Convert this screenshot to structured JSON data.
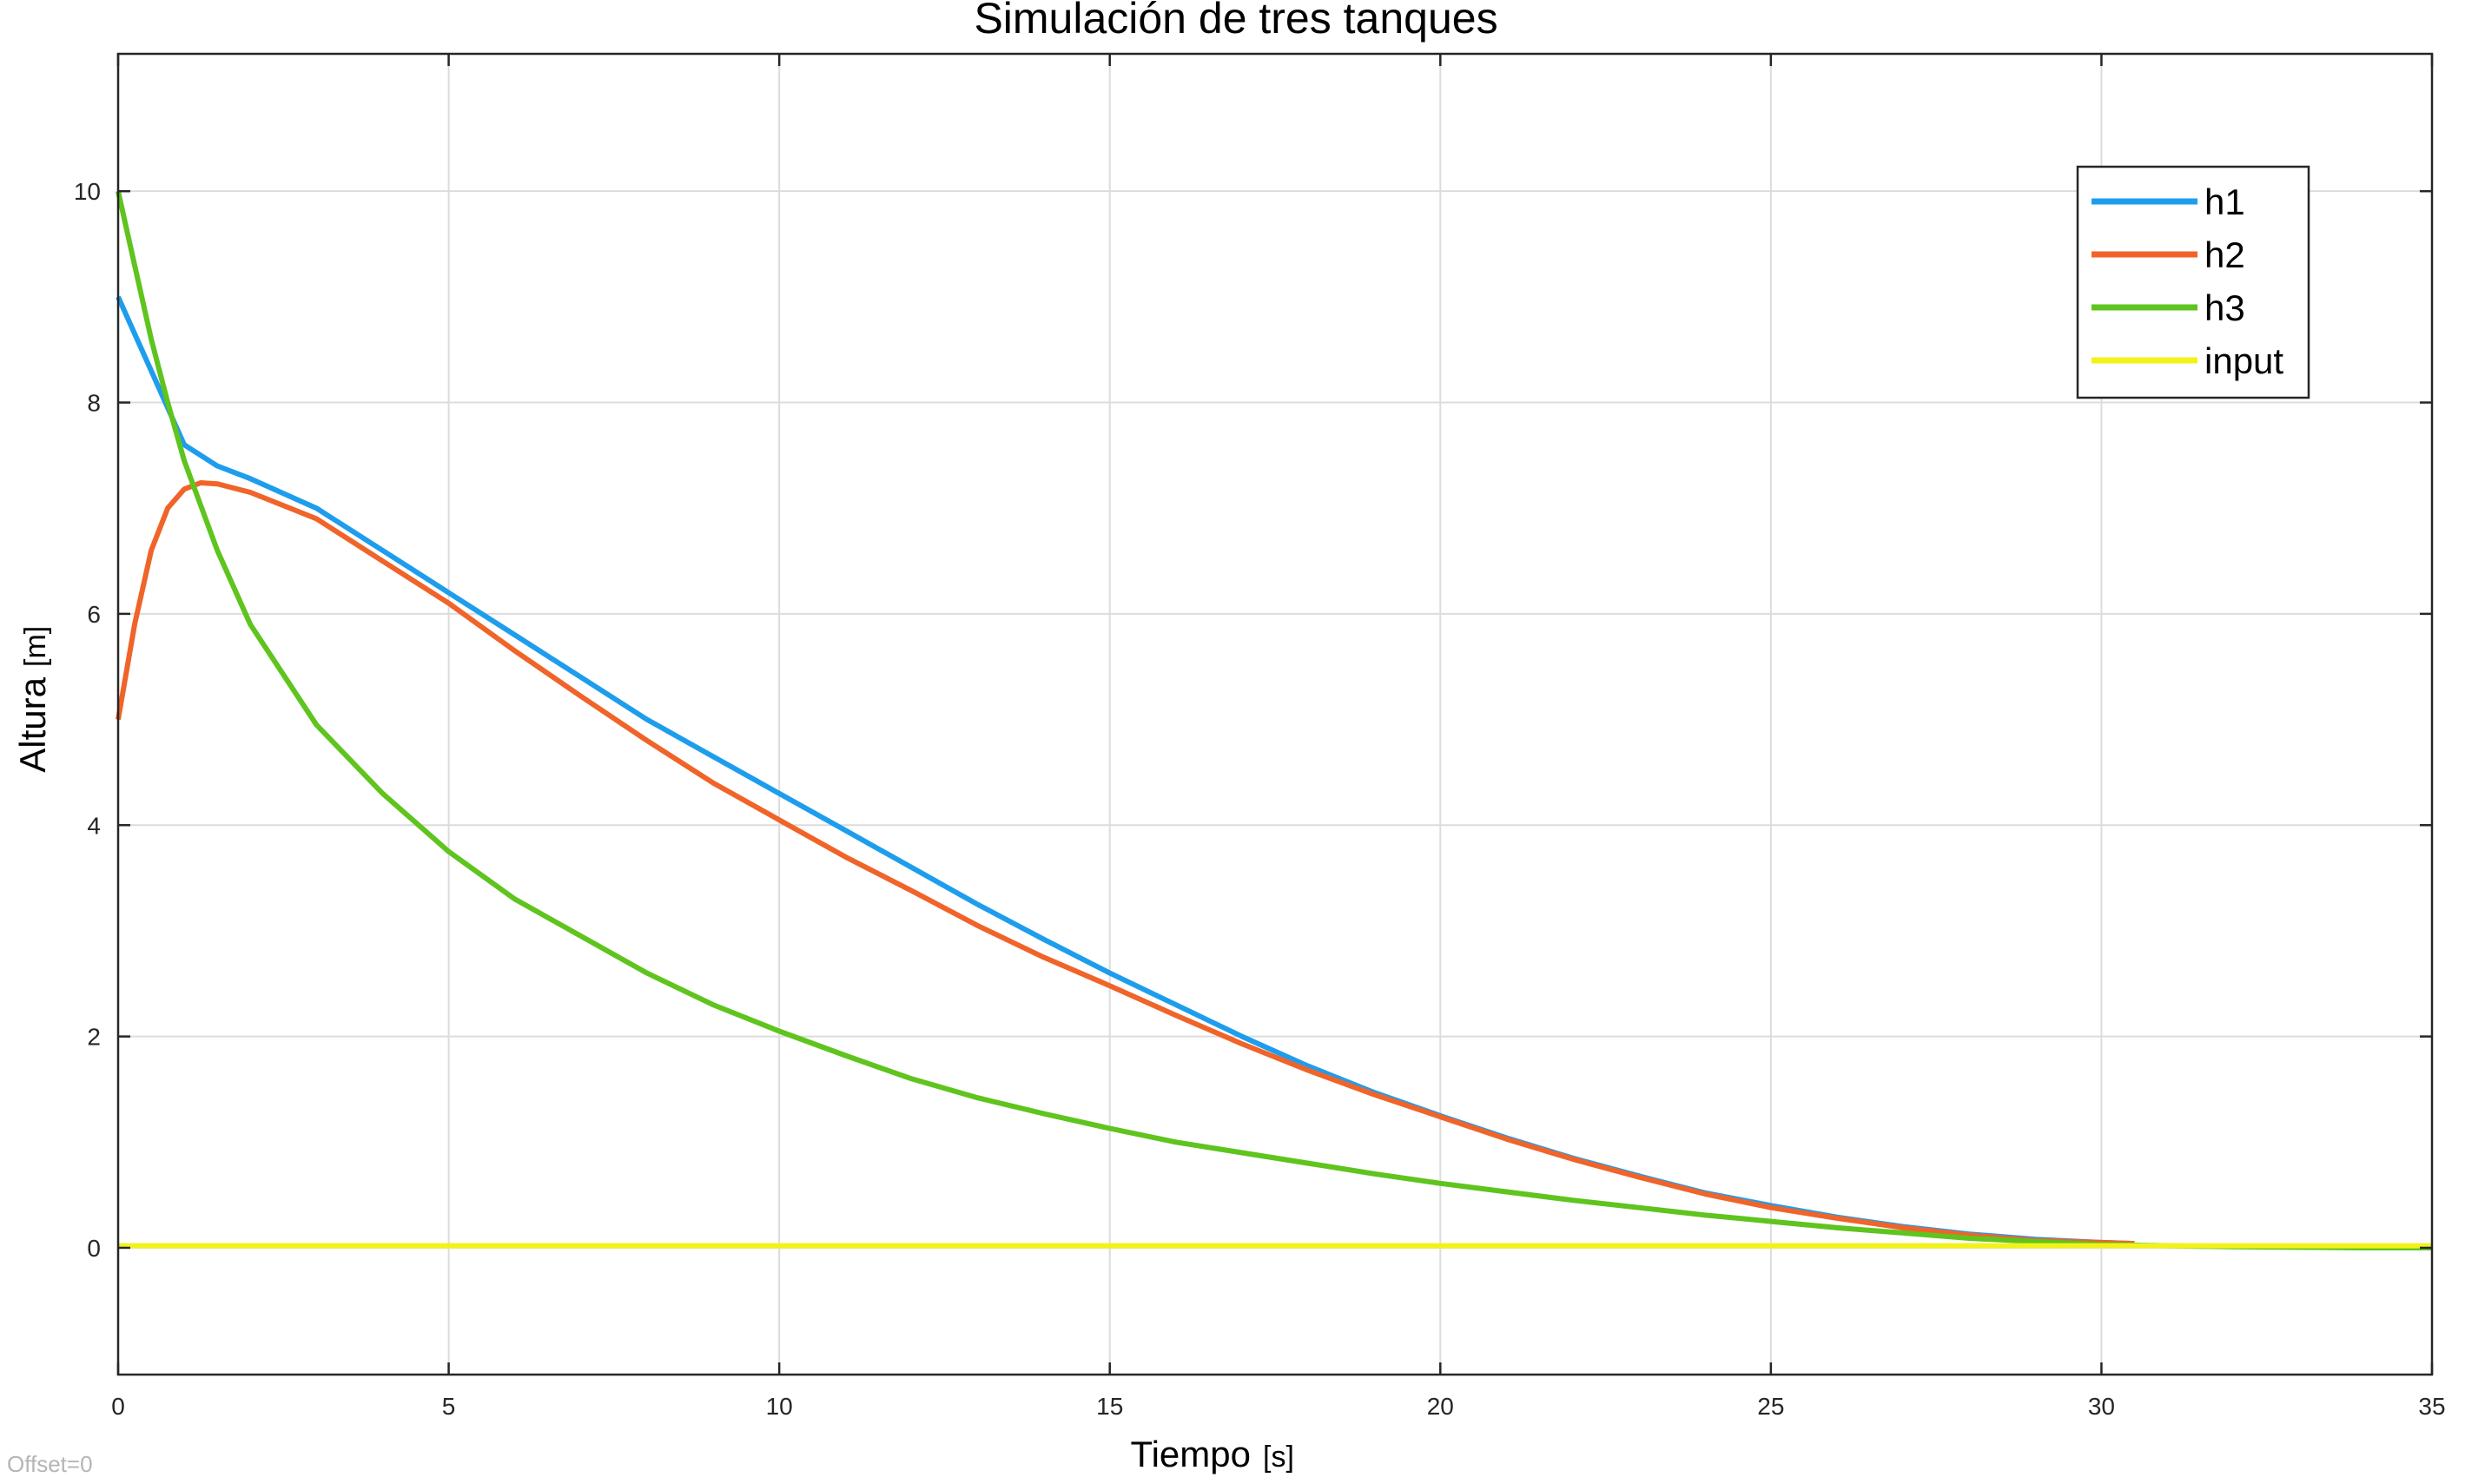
{
  "chart_data": {
    "type": "line",
    "title": "Simulación de tres tanques",
    "xlabel": "Tiempo",
    "xlabel_unit": "[s]",
    "ylabel": "Altura",
    "ylabel_unit": "[m]",
    "xlim": [
      0,
      35
    ],
    "ylim": [
      -1.2,
      11.3
    ],
    "xticks": [
      0,
      5,
      10,
      15,
      20,
      25,
      30,
      35
    ],
    "yticks": [
      0,
      2,
      4,
      6,
      8,
      10
    ],
    "grid": true,
    "legend_position": "top-right",
    "footer_text": "Offset=0",
    "series": [
      {
        "name": "h1",
        "color": "#1f9ded",
        "x": [
          0,
          0.5,
          1,
          1.5,
          2,
          3,
          4,
          5,
          6,
          7,
          8,
          9,
          10,
          11,
          12,
          13,
          14,
          15,
          16,
          17,
          18,
          19,
          20,
          21,
          22,
          23,
          24,
          25,
          26,
          27,
          28,
          29,
          30,
          30.5
        ],
        "values": [
          9.0,
          8.3,
          7.6,
          7.4,
          7.28,
          7.0,
          6.6,
          6.2,
          5.8,
          5.4,
          5.0,
          4.65,
          4.3,
          3.95,
          3.6,
          3.25,
          2.92,
          2.6,
          2.3,
          2.0,
          1.72,
          1.47,
          1.25,
          1.04,
          0.85,
          0.68,
          0.52,
          0.4,
          0.29,
          0.2,
          0.13,
          0.08,
          0.05,
          0.04
        ]
      },
      {
        "name": "h2",
        "color": "#f0642a",
        "x": [
          0,
          0.25,
          0.5,
          0.75,
          1,
          1.25,
          1.5,
          2,
          3,
          4,
          5,
          6,
          7,
          8,
          9,
          10,
          11,
          12,
          13,
          14,
          15,
          16,
          17,
          18,
          19,
          20,
          21,
          22,
          23,
          24,
          25,
          26,
          27,
          28,
          29,
          30,
          30.5
        ],
        "values": [
          5.0,
          5.9,
          6.6,
          7.0,
          7.18,
          7.24,
          7.23,
          7.15,
          6.9,
          6.5,
          6.1,
          5.65,
          5.22,
          4.8,
          4.4,
          4.05,
          3.7,
          3.38,
          3.05,
          2.75,
          2.48,
          2.2,
          1.93,
          1.68,
          1.45,
          1.24,
          1.03,
          0.84,
          0.67,
          0.51,
          0.38,
          0.28,
          0.19,
          0.12,
          0.07,
          0.05,
          0.04
        ]
      },
      {
        "name": "h3",
        "color": "#5fc41e",
        "x": [
          0,
          0.25,
          0.5,
          0.75,
          1,
          1.5,
          2,
          3,
          4,
          5,
          6,
          7,
          8,
          9,
          10,
          11,
          12,
          13,
          14,
          15,
          16,
          17,
          18,
          19,
          20,
          21,
          22,
          23,
          24,
          25,
          26,
          27,
          28,
          29,
          30,
          31,
          32,
          33,
          34,
          35
        ],
        "values": [
          10.0,
          9.3,
          8.6,
          8.0,
          7.45,
          6.6,
          5.9,
          4.95,
          4.3,
          3.75,
          3.3,
          2.95,
          2.6,
          2.3,
          2.05,
          1.82,
          1.6,
          1.42,
          1.27,
          1.13,
          1.0,
          0.9,
          0.8,
          0.7,
          0.61,
          0.53,
          0.45,
          0.38,
          0.31,
          0.25,
          0.19,
          0.14,
          0.09,
          0.06,
          0.03,
          0.02,
          0.01,
          0.005,
          0.0,
          0.0
        ]
      },
      {
        "name": "input",
        "color": "#f2f21a",
        "x": [
          0,
          35
        ],
        "values": [
          0.02,
          0.02
        ]
      }
    ]
  }
}
